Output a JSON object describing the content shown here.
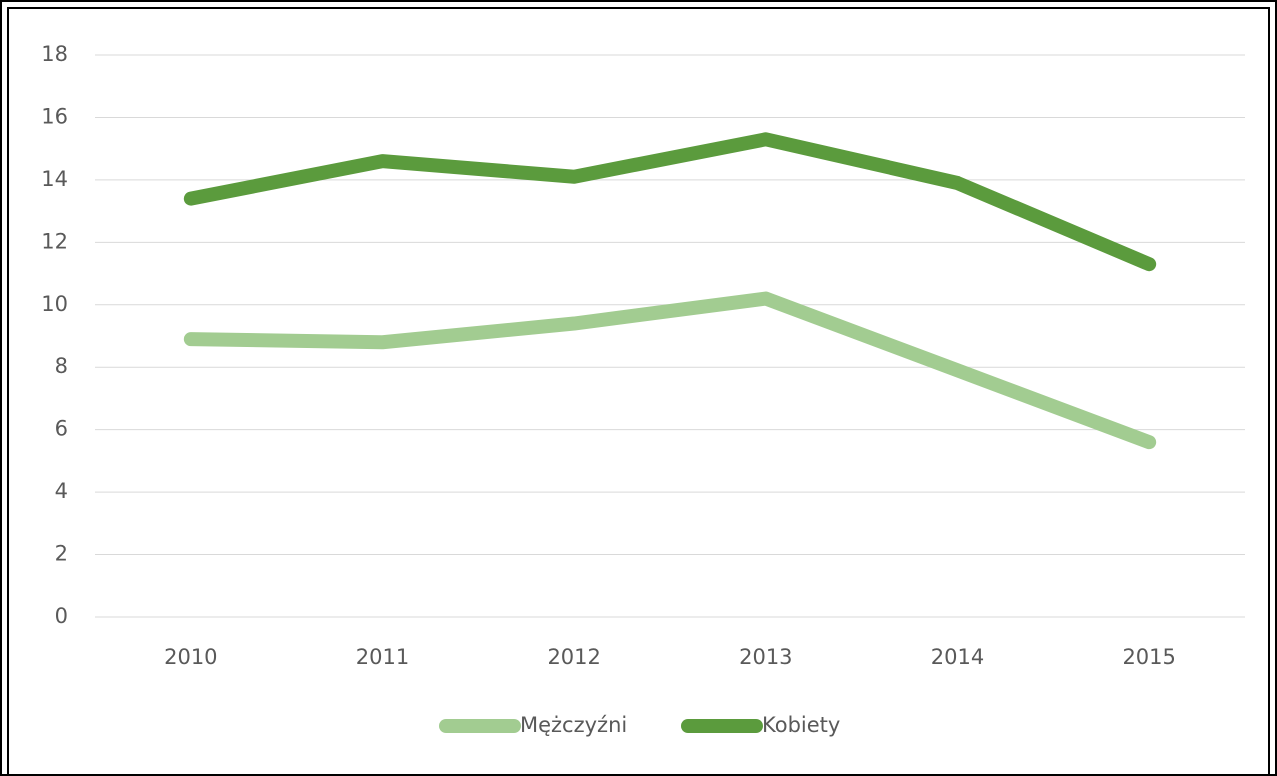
{
  "chart_data": {
    "type": "line",
    "categories": [
      "2010",
      "2011",
      "2012",
      "2013",
      "2014",
      "2015"
    ],
    "series": [
      {
        "name": "Mężczyźni",
        "color": "#a2cc91",
        "values": [
          8.9,
          8.8,
          9.4,
          10.2,
          7.9,
          5.6
        ]
      },
      {
        "name": "Kobiety",
        "color": "#5b9b3d",
        "values": [
          13.4,
          14.6,
          14.1,
          15.3,
          13.9,
          11.3
        ]
      }
    ],
    "ylim": [
      0,
      18
    ],
    "yticks": [
      0,
      2,
      4,
      6,
      8,
      10,
      12,
      14,
      16,
      18
    ],
    "grid": true,
    "legend": "bottom"
  }
}
